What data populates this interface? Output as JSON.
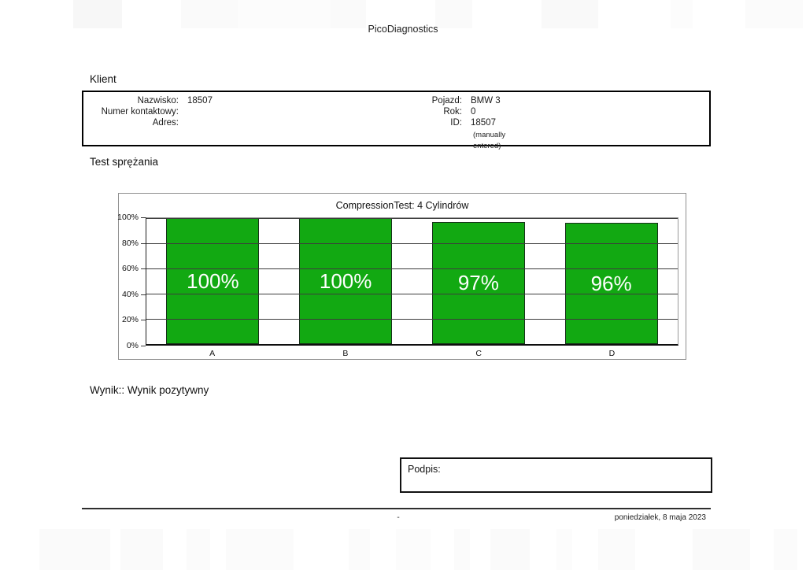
{
  "report": {
    "title": "PicoDiagnostics",
    "client": {
      "heading": "Klient",
      "left_rows": [
        {
          "label": "Nazwisko:",
          "value": "18507"
        },
        {
          "label": "Numer kontaktowy:",
          "value": ""
        },
        {
          "label": "Adres:",
          "value": ""
        }
      ],
      "right_rows": [
        {
          "label": "Pojazd:",
          "value": "BMW 3"
        },
        {
          "label": "Rok:",
          "value": "0"
        },
        {
          "label": "ID:",
          "value": "18507"
        }
      ],
      "note": "(manually entered)"
    },
    "test_heading": "Test sprężania",
    "result": {
      "label": "Wynik::",
      "value": "Wynik pozytywny"
    },
    "signature_label": "Podpis:",
    "footer": {
      "center": "-",
      "date": "poniedziałek, 8 maja 2023"
    }
  },
  "chart_data": {
    "type": "bar",
    "title": "CompressionTest: 4 Cylindrów",
    "categories": [
      "A",
      "B",
      "C",
      "D"
    ],
    "values": [
      100,
      100,
      97,
      96
    ],
    "value_labels": [
      "100%",
      "100%",
      "97%",
      "96%"
    ],
    "xlabel": "",
    "ylabel": "",
    "ylim": [
      0,
      100
    ],
    "ytick_values": [
      0,
      20,
      40,
      60,
      80,
      100
    ],
    "ytick_suffix": "%",
    "grid": true,
    "legend": false,
    "bar_color": "#12a912",
    "bar_border_color": "#17301a",
    "value_label_color": "#ffffff"
  }
}
